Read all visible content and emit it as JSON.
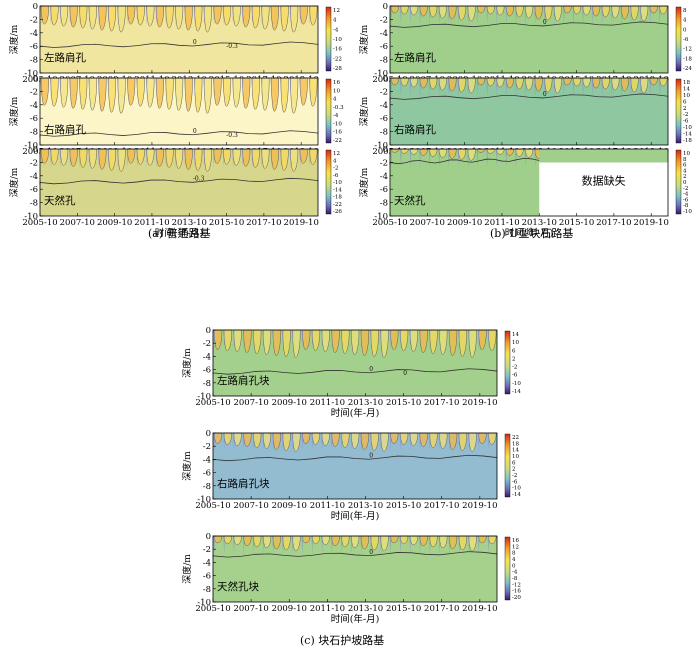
{
  "figure": {
    "captions": [
      "(a) 普通路基",
      "(b) U型块石路基",
      "(c) 块石护坡路基"
    ]
  },
  "axis_common": {
    "xlabel": "时间(年-月)",
    "ylabel": "深度/m",
    "x_ticks": [
      "2005-10",
      "2007-10",
      "2009-10",
      "2011-10",
      "2013-10",
      "2015-10",
      "2017-10",
      "2019-10"
    ],
    "y_ticks": [
      "0",
      "-2",
      "-4",
      "-6",
      "-8",
      "-10"
    ],
    "ylim": [
      -10,
      0
    ]
  },
  "chart_data": [
    {
      "type": "heatmap",
      "group": "a",
      "label": "左路肩孔",
      "colorbar_ticks": [
        "12",
        "4",
        "-4",
        "-10",
        "-16",
        "-22",
        "-28"
      ],
      "colorbar_range": [
        -28,
        12
      ],
      "contour_labels": [
        "0",
        "-0.3"
      ],
      "background_color": "#f0e6a0",
      "thaw_depth_m": 6.0
    },
    {
      "type": "heatmap",
      "group": "a",
      "label": "右路肩孔",
      "colorbar_ticks": [
        "16",
        "10",
        "4",
        "-0.3",
        "-4",
        "-10",
        "-16",
        "-22"
      ],
      "colorbar_range": [
        -22,
        16
      ],
      "contour_labels": [
        "0",
        "-0.3"
      ],
      "background_color": "#fbf5c8",
      "thaw_depth_m": 8.5
    },
    {
      "type": "heatmap",
      "group": "a",
      "label": "天然孔",
      "colorbar_ticks": [
        "12",
        "4",
        "-2",
        "-6",
        "-10",
        "-14",
        "-18",
        "-22",
        "-26"
      ],
      "colorbar_range": [
        -26,
        12
      ],
      "contour_labels": [
        "-0.3"
      ],
      "background_color": "#d6d78c",
      "thaw_depth_m": 5.0
    },
    {
      "type": "heatmap",
      "group": "b",
      "label": "左路肩孔",
      "colorbar_ticks": [
        "8",
        "4",
        "0",
        "-6",
        "-12",
        "-18",
        "-24"
      ],
      "colorbar_range": [
        -24,
        8
      ],
      "contour_labels": [
        "0"
      ],
      "background_color": "#9fcf8a",
      "thaw_depth_m": 3.0
    },
    {
      "type": "heatmap",
      "group": "b",
      "label": "右路肩孔",
      "colorbar_ticks": [
        "18",
        "14",
        "10",
        "6",
        "2",
        "-2",
        "-6",
        "-10",
        "-14",
        "-18"
      ],
      "colorbar_range": [
        -18,
        18
      ],
      "contour_labels": [
        "0"
      ],
      "background_color": "#8ec7a0",
      "thaw_depth_m": 3.0
    },
    {
      "type": "heatmap",
      "group": "b",
      "label": "天然孔",
      "colorbar_ticks": [
        "10",
        "8",
        "6",
        "4",
        "2",
        "0",
        "-2",
        "-4",
        "-6",
        "-8",
        "-10"
      ],
      "colorbar_range": [
        -10,
        10
      ],
      "contour_labels": [
        "0"
      ],
      "background_color": "#9fcf8a",
      "thaw_depth_m": 2.0,
      "missing_label": "数据缺失",
      "missing_from": "2013-10"
    },
    {
      "type": "heatmap",
      "group": "c",
      "label": "左路肩孔块",
      "colorbar_ticks": [
        "14",
        "10",
        "6",
        "2",
        "-2",
        "-6",
        "-10",
        "-14"
      ],
      "colorbar_range": [
        -14,
        14
      ],
      "contour_labels": [
        "0",
        "0"
      ],
      "background_color": "#a3d08c",
      "thaw_depth_m": 6.5
    },
    {
      "type": "heatmap",
      "group": "c",
      "label": "右路肩孔块",
      "colorbar_ticks": [
        "22",
        "18",
        "14",
        "10",
        "6",
        "2",
        "-2",
        "-6",
        "-10",
        "-14"
      ],
      "colorbar_range": [
        -14,
        22
      ],
      "contour_labels": [
        "0"
      ],
      "background_color": "#93bcd1",
      "thaw_depth_m": 4.0
    },
    {
      "type": "heatmap",
      "group": "c",
      "label": "天然孔块",
      "colorbar_ticks": [
        "16",
        "12",
        "8",
        "4",
        "0",
        "-4",
        "-8",
        "-12",
        "-16",
        "-20"
      ],
      "colorbar_range": [
        -20,
        16
      ],
      "contour_labels": [
        "0"
      ],
      "background_color": "#a5d18d",
      "thaw_depth_m": 3.0
    }
  ]
}
